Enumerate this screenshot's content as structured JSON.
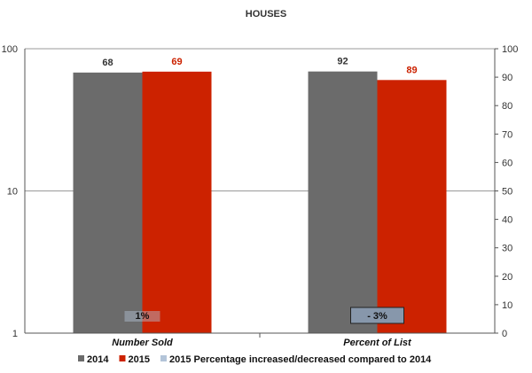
{
  "chart_data": {
    "type": "bar",
    "title": "HOUSES",
    "categories": [
      "Number Sold",
      "Percent of List"
    ],
    "series": [
      {
        "name": "2014",
        "values": [
          68,
          92
        ],
        "color": "#6b6b6b",
        "label_color": "#333333"
      },
      {
        "name": "2015",
        "values": [
          69,
          89
        ],
        "color": "#cc2200",
        "label_color": "#cc2200"
      },
      {
        "name": "2015 Percentage increased/decreased compared to 2014",
        "values": [
          1,
          -3
        ],
        "labels": [
          "1%",
          "- 3%"
        ],
        "color": "#b3c4d8"
      }
    ],
    "y_left": {
      "scale": "log",
      "ticks": [
        "1",
        "10",
        "100"
      ],
      "range": [
        1,
        100
      ]
    },
    "y_right": {
      "scale": "linear",
      "ticks": [
        "0",
        "10",
        "20",
        "30",
        "40",
        "50",
        "60",
        "70",
        "80",
        "90",
        "100"
      ],
      "range": [
        0,
        100
      ]
    },
    "grid": true,
    "legend_position": "bottom"
  }
}
